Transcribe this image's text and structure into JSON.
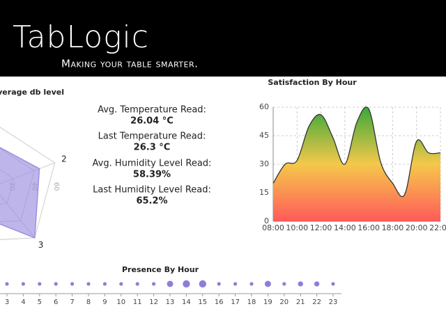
{
  "header": {
    "logo": "TabLogic",
    "tagline": "Making your table smarter."
  },
  "stats": [
    {
      "label": "Avg. Temperature Read:",
      "value": "26.04 °C"
    },
    {
      "label": "Last Temperature Read:",
      "value": "26.3 °C"
    },
    {
      "label": "Avg. Humidity Level Read:",
      "value": "58.39%"
    },
    {
      "label": "Last Humidity Level Read:",
      "value": "65.2%"
    }
  ],
  "chart_data": [
    {
      "type": "radar",
      "title": "Average db level",
      "categories": [
        null,
        null,
        "2",
        "3",
        null
      ],
      "values": [
        30,
        40,
        45,
        60,
        30
      ],
      "color": "#9b8fe0",
      "rlim": [
        0,
        60
      ],
      "rticks": [
        20,
        40,
        60
      ]
    },
    {
      "type": "area",
      "title": "Satisfaction By Hour",
      "x": [
        8,
        9,
        10,
        11,
        12,
        13,
        14,
        15,
        16,
        17,
        18,
        19,
        20,
        21,
        22
      ],
      "values": [
        20,
        30,
        32,
        50,
        56,
        44,
        30,
        52,
        59,
        31,
        20,
        14,
        42,
        36,
        36
      ],
      "xlim": [
        8,
        22
      ],
      "xticks": [
        {
          "value": 8,
          "label": "08:00"
        },
        {
          "value": 10,
          "label": "10:00"
        },
        {
          "value": 12,
          "label": "12:00"
        },
        {
          "value": 14,
          "label": "14:00"
        },
        {
          "value": 16,
          "label": "16:00"
        },
        {
          "value": 18,
          "label": "18:00"
        },
        {
          "value": 20,
          "label": "20:00"
        },
        {
          "value": 22,
          "label": "22:00"
        }
      ],
      "ylim": [
        0,
        60
      ],
      "yticks": [
        0,
        15,
        30,
        45,
        60
      ],
      "grid": true,
      "color": "#333333",
      "gradient": [
        "#ff5a5a",
        "#f5c84a",
        "#3aa83a"
      ]
    },
    {
      "type": "bubble",
      "title": "Presence By Hour",
      "categories": [
        "3",
        "4",
        "5",
        "6",
        "7",
        "8",
        "9",
        "10",
        "11",
        "12",
        "13",
        "14",
        "15",
        "16",
        "17",
        "18",
        "19",
        "20",
        "21",
        "22",
        "23"
      ],
      "values": [
        1,
        1,
        1,
        1,
        1,
        1,
        1,
        1,
        1,
        1,
        3,
        4,
        4,
        1,
        1,
        1,
        3,
        1,
        2,
        2,
        1
      ],
      "color": "#8b7fdb"
    }
  ]
}
